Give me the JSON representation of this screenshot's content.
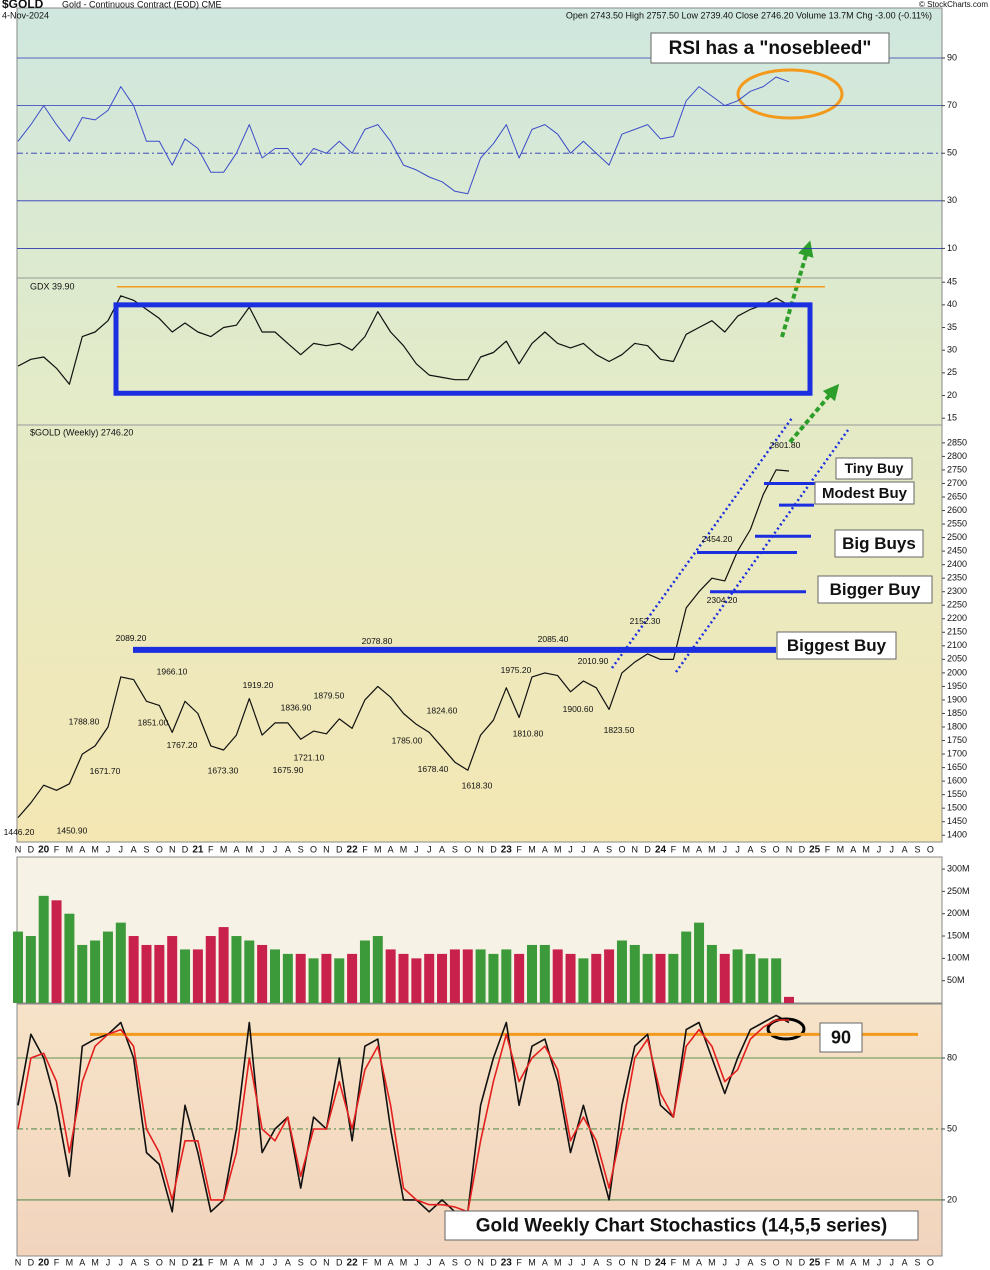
{
  "header": {
    "symbol": "$GOLD",
    "description": "Gold - Continuous Contract (EOD) CME",
    "date": "4-Nov-2024",
    "quote": "Open 2743.50  High 2757.50  Low 2739.40  Close 2746.20  Volume 13.7M  Chg -3.00 (-0.11%)",
    "copyright": "© StockCharts.com"
  },
  "chart_data": [
    {
      "type": "line",
      "color": "#3b4cc8",
      "values": [
        55,
        62,
        70,
        62,
        55,
        65,
        64,
        68,
        78,
        70,
        55,
        55,
        45,
        56,
        52,
        42,
        42,
        50,
        62,
        48,
        52,
        52,
        45,
        52,
        50,
        55,
        50,
        60,
        62,
        55,
        45,
        43,
        40,
        38,
        34,
        33,
        48,
        54,
        62,
        48,
        60,
        62,
        58,
        50,
        55,
        50,
        45,
        58,
        60,
        62,
        56,
        57,
        72,
        78,
        74,
        70,
        72,
        76,
        78,
        82,
        80,
        null,
        null,
        null,
        null,
        null,
        null,
        null,
        null,
        null,
        null,
        null
      ],
      "ylim": [
        -2,
        111
      ],
      "yticks": [
        90,
        70,
        50,
        30,
        10
      ],
      "annotation": "RSI has a \"nosebleed\"",
      "highlight_color": "#f39a1c"
    },
    {
      "type": "line",
      "title": "GDX 39.90",
      "color": "#111111",
      "values": [
        26.5,
        28,
        28.5,
        26,
        22.5,
        33,
        34,
        36.5,
        42,
        41,
        39,
        37,
        34,
        36,
        34,
        33,
        35,
        35.5,
        39.5,
        34,
        34,
        31.5,
        29,
        31.5,
        31,
        31.5,
        30,
        33,
        38.5,
        34,
        31,
        27,
        24.5,
        24,
        23.5,
        23.5,
        28.5,
        29.5,
        32,
        27,
        31.5,
        34,
        31.5,
        30.5,
        31.5,
        29,
        27.5,
        29,
        31.5,
        31,
        28,
        27.5,
        33.5,
        35,
        36.5,
        34,
        37.5,
        39,
        40,
        41.5,
        39.9,
        null,
        null,
        null,
        null,
        null,
        null,
        null,
        null,
        null,
        null,
        null
      ],
      "ylim": [
        13.5,
        45.7
      ],
      "yticks": [
        45,
        40,
        35,
        30,
        25,
        20,
        15
      ],
      "box": [
        20.5,
        40
      ],
      "box_color": "#1c2fe0",
      "resistance": 44,
      "resistance_color": "#f39a1c"
    },
    {
      "type": "line",
      "title": "$GOLD (Weekly) 2746.20",
      "color": "#111111",
      "categories": [
        "N",
        "D",
        "20",
        "F",
        "M",
        "A",
        "M",
        "J",
        "J",
        "A",
        "S",
        "O",
        "N",
        "D",
        "21",
        "F",
        "M",
        "A",
        "M",
        "J",
        "J",
        "A",
        "S",
        "O",
        "N",
        "D",
        "22",
        "F",
        "M",
        "A",
        "M",
        "J",
        "J",
        "A",
        "S",
        "O",
        "N",
        "D",
        "23",
        "F",
        "M",
        "A",
        "M",
        "J",
        "J",
        "A",
        "S",
        "O",
        "N",
        "D",
        "24",
        "F",
        "M",
        "A",
        "M",
        "J",
        "J",
        "A",
        "S",
        "O",
        "N",
        "D",
        "25",
        "F",
        "M",
        "A",
        "M",
        "J",
        "J",
        "A",
        "S",
        "O"
      ],
      "values": [
        1465,
        1520,
        1585,
        1566,
        1590,
        1700,
        1730,
        1800,
        1985,
        1975,
        1895,
        1880,
        1780,
        1895,
        1850,
        1730,
        1715,
        1770,
        1905,
        1770,
        1815,
        1815,
        1755,
        1785,
        1775,
        1830,
        1795,
        1900,
        1950,
        1910,
        1850,
        1810,
        1780,
        1725,
        1670,
        1640,
        1770,
        1825,
        1945,
        1835,
        1985,
        2000,
        1990,
        1930,
        1970,
        1945,
        1865,
        2000,
        2040,
        2070,
        2050,
        2050,
        2240,
        2300,
        2350,
        2340,
        2450,
        2530,
        2660,
        2750,
        2746.2,
        null,
        null,
        null,
        null,
        null,
        null,
        null,
        null,
        null,
        null,
        null
      ],
      "ylim": [
        1375,
        2905
      ],
      "yticks": [
        2850,
        2800,
        2750,
        2700,
        2650,
        2600,
        2550,
        2500,
        2450,
        2400,
        2350,
        2300,
        2250,
        2200,
        2150,
        2100,
        2050,
        2000,
        1950,
        1900,
        1850,
        1800,
        1750,
        1700,
        1650,
        1600,
        1550,
        1500,
        1450,
        1400
      ],
      "price_labels": [
        {
          "value": 2089.2,
          "label": "2089.20"
        },
        {
          "value": 1788.8,
          "label": "1788.80"
        },
        {
          "value": 1671.7,
          "label": "1671.70"
        },
        {
          "value": 1446.2,
          "label": "1446.20"
        },
        {
          "value": 1450.9,
          "label": "1450.90"
        },
        {
          "value": 1966.1,
          "label": "1966.10"
        },
        {
          "value": 1851,
          "label": "1851.00"
        },
        {
          "value": 1767.2,
          "label": "1767.20"
        },
        {
          "value": 1919.2,
          "label": "1919.20"
        },
        {
          "value": 1673.3,
          "label": "1673.30"
        },
        {
          "value": 1836.9,
          "label": "1836.90"
        },
        {
          "value": 1675.9,
          "label": "1675.90"
        },
        {
          "value": 1721.1,
          "label": "1721.10"
        },
        {
          "value": 1879.5,
          "label": "1879.50"
        },
        {
          "value": 2078.8,
          "label": "2078.80"
        },
        {
          "value": 1785,
          "label": "1785.00"
        },
        {
          "value": 1824.6,
          "label": "1824.60"
        },
        {
          "value": 1678.4,
          "label": "1678.40"
        },
        {
          "value": 1618.3,
          "label": "1618.30"
        },
        {
          "value": 1975.2,
          "label": "1975.20"
        },
        {
          "value": 1810.8,
          "label": "1810.80"
        },
        {
          "value": 2085.4,
          "label": "2085.40"
        },
        {
          "value": 2010.9,
          "label": "2010.90"
        },
        {
          "value": 1900.6,
          "label": "1900.60"
        },
        {
          "value": 1823.5,
          "label": "1823.50"
        },
        {
          "value": 2152.3,
          "label": "2152.30"
        },
        {
          "value": 2454.2,
          "label": "2454.20"
        },
        {
          "value": 2304.2,
          "label": "2304.20"
        },
        {
          "value": 2801.8,
          "label": "2801.80"
        }
      ],
      "annotations": [
        {
          "text": "Tiny Buy",
          "levels": [
            2700
          ]
        },
        {
          "text": "Modest Buy",
          "levels": [
            2620
          ]
        },
        {
          "text": "Big Buys",
          "levels": [
            2505,
            2445
          ]
        },
        {
          "text": "Bigger Buy",
          "levels": [
            2300
          ]
        },
        {
          "text": "Biggest Buy",
          "levels": [
            2085
          ]
        }
      ],
      "annotation_color": "#1c2fe0"
    },
    {
      "type": "bar",
      "up_color": "#3d9a3a",
      "down_color": "#c8214c",
      "values": [
        160000000,
        150000000,
        240000000,
        230000000,
        200000000,
        130000000,
        140000000,
        160000000,
        180000000,
        150000000,
        130000000,
        130000000,
        150000000,
        120000000,
        120000000,
        150000000,
        170000000,
        150000000,
        140000000,
        130000000,
        120000000,
        110000000,
        110000000,
        100000000,
        110000000,
        100000000,
        110000000,
        140000000,
        150000000,
        120000000,
        110000000,
        100000000,
        110000000,
        110000000,
        120000000,
        120000000,
        120000000,
        110000000,
        120000000,
        110000000,
        130000000,
        130000000,
        120000000,
        110000000,
        100000000,
        110000000,
        120000000,
        140000000,
        130000000,
        110000000,
        110000000,
        110000000,
        160000000,
        180000000,
        130000000,
        110000000,
        120000000,
        110000000,
        100000000,
        100000000,
        13700000,
        null,
        null,
        null,
        null,
        null,
        null,
        null,
        null,
        null,
        null,
        null
      ],
      "ylim": [
        0,
        327000000
      ],
      "yticks": [
        {
          "value": 300000000,
          "label": "300M"
        },
        {
          "value": 250000000,
          "label": "250M"
        },
        {
          "value": 200000000,
          "label": "200M"
        },
        {
          "value": 150000000,
          "label": "150M"
        },
        {
          "value": 100000000,
          "label": "100M"
        },
        {
          "value": 50000000,
          "label": "50M"
        }
      ]
    },
    {
      "type": "line",
      "title": "Gold Weekly Chart Stochastics (14,5,5 series)",
      "categories": [
        "N",
        "D",
        "20",
        "F",
        "M",
        "A",
        "M",
        "J",
        "J",
        "A",
        "S",
        "O",
        "N",
        "D",
        "21",
        "F",
        "M",
        "A",
        "M",
        "J",
        "J",
        "A",
        "S",
        "O",
        "N",
        "D",
        "22",
        "F",
        "M",
        "A",
        "M",
        "J",
        "J",
        "A",
        "S",
        "O",
        "N",
        "D",
        "23",
        "F",
        "M",
        "A",
        "M",
        "J",
        "J",
        "A",
        "S",
        "O",
        "N",
        "D",
        "24",
        "F",
        "M",
        "A",
        "M",
        "J",
        "J",
        "A",
        "S",
        "O",
        "N",
        "D",
        "25",
        "F",
        "M",
        "A",
        "M",
        "J",
        "J",
        "A",
        "S",
        "O"
      ],
      "series": [
        {
          "color": "#111111",
          "values": [
            60,
            90,
            80,
            60,
            30,
            85,
            88,
            90,
            95,
            80,
            40,
            35,
            15,
            60,
            40,
            15,
            20,
            50,
            95,
            40,
            50,
            55,
            25,
            55,
            50,
            80,
            45,
            85,
            88,
            50,
            20,
            20,
            15,
            20,
            15,
            15,
            60,
            80,
            95,
            60,
            85,
            88,
            70,
            40,
            60,
            40,
            20,
            60,
            85,
            90,
            60,
            55,
            92,
            95,
            80,
            65,
            80,
            92,
            95,
            98,
            95,
            null,
            null,
            null,
            null,
            null,
            null,
            null,
            null,
            null,
            null,
            null
          ]
        },
        {
          "color": "#e3201e",
          "values": [
            50,
            80,
            82,
            70,
            40,
            70,
            85,
            90,
            92,
            85,
            50,
            40,
            20,
            45,
            45,
            20,
            20,
            40,
            80,
            50,
            45,
            55,
            30,
            50,
            50,
            70,
            50,
            75,
            85,
            60,
            25,
            20,
            18,
            18,
            17,
            15,
            45,
            70,
            90,
            70,
            80,
            85,
            75,
            45,
            55,
            45,
            25,
            50,
            80,
            88,
            65,
            55,
            85,
            92,
            85,
            70,
            75,
            88,
            93,
            96,
            96,
            null,
            null,
            null,
            null,
            null,
            null,
            null,
            null,
            null,
            null,
            null
          ]
        }
      ],
      "ylim": [
        -3.7,
        102.4
      ],
      "yticks": [
        80,
        50,
        20
      ],
      "annotation": {
        "text": "90",
        "level": 90
      },
      "annotation_color": "#f39a1c"
    }
  ]
}
